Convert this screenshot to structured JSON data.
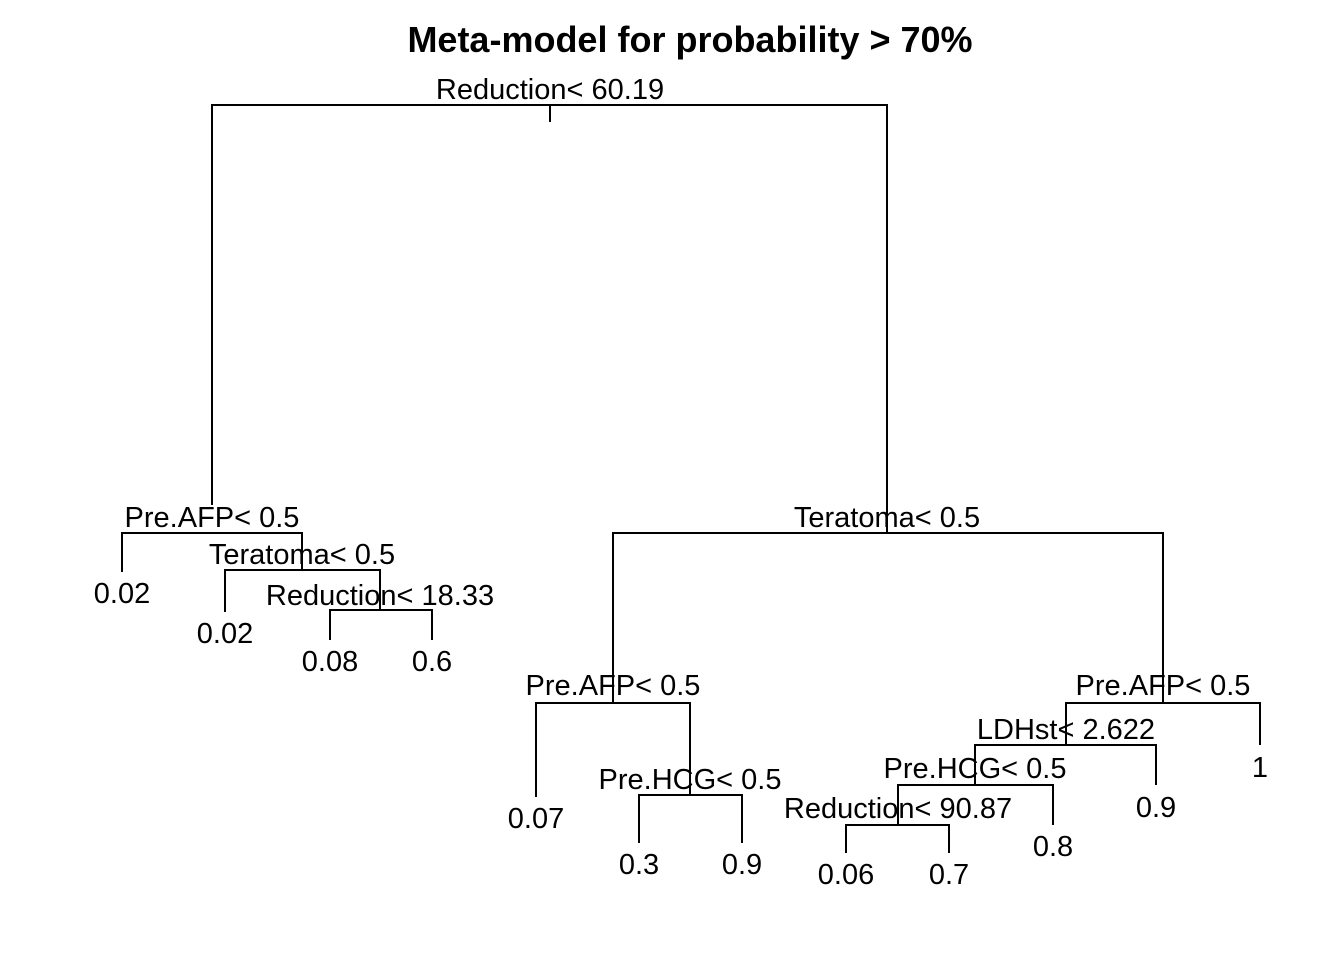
{
  "title": "Meta-model for probability > 70%",
  "tree": {
    "nodes": {
      "n1": {
        "label": "Reduction< 60.19"
      },
      "n2": {
        "label": "Pre.AFP< 0.5"
      },
      "n3": {
        "label": "Teratoma< 0.5"
      },
      "n4": {
        "label": "Teratoma< 0.5"
      },
      "n5": {
        "label": "Reduction< 18.33"
      },
      "n6": {
        "label": "Pre.AFP< 0.5"
      },
      "n7": {
        "label": "Pre.AFP< 0.5"
      },
      "n8": {
        "label": "Pre.HCG< 0.5"
      },
      "n9": {
        "label": "LDHst< 2.622"
      },
      "n10": {
        "label": "Pre.HCG< 0.5"
      },
      "n11": {
        "label": "Reduction< 90.87"
      }
    },
    "leaves": {
      "l1": {
        "value": "0.02"
      },
      "l2": {
        "value": "0.02"
      },
      "l3": {
        "value": "0.08"
      },
      "l4": {
        "value": "0.6"
      },
      "l5": {
        "value": "0.07"
      },
      "l6": {
        "value": "0.3"
      },
      "l7": {
        "value": "0.9"
      },
      "l8": {
        "value": "0.06"
      },
      "l9": {
        "value": "0.7"
      },
      "l10": {
        "value": "0.8"
      },
      "l11": {
        "value": "0.9"
      },
      "l12": {
        "value": "1"
      }
    }
  }
}
